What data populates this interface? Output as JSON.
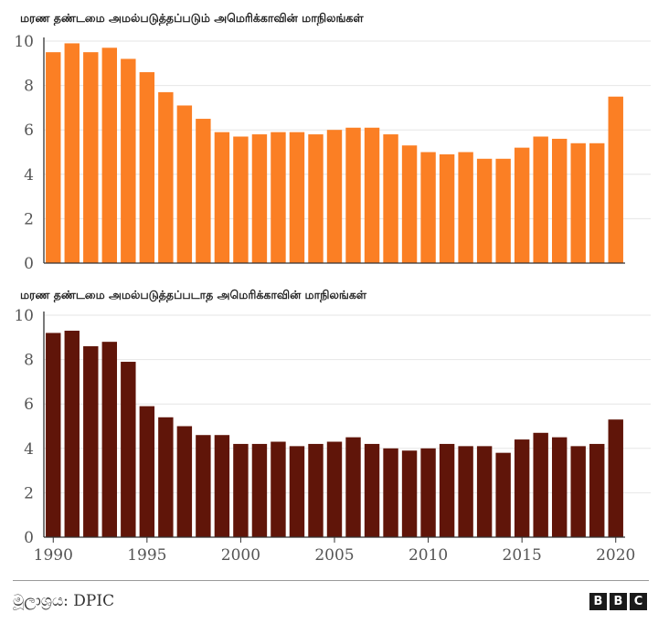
{
  "chart_data": [
    {
      "type": "bar",
      "title": "மரண தண்டமை அமல்படுத்தப்படும் அமெரிக்காவின் மாநிலங்கள்",
      "x": [
        1990,
        1991,
        1992,
        1993,
        1994,
        1995,
        1996,
        1997,
        1998,
        1999,
        2000,
        2001,
        2002,
        2003,
        2004,
        2005,
        2006,
        2007,
        2008,
        2009,
        2010,
        2011,
        2012,
        2013,
        2014,
        2015,
        2016,
        2017,
        2018,
        2019,
        2020
      ],
      "values": [
        9.5,
        9.9,
        9.5,
        9.7,
        9.2,
        8.6,
        7.7,
        7.1,
        6.5,
        5.9,
        5.7,
        5.8,
        5.9,
        5.9,
        5.8,
        6.0,
        6.1,
        6.1,
        5.8,
        5.3,
        5.0,
        4.9,
        5.0,
        4.7,
        4.7,
        5.2,
        5.7,
        5.6,
        5.4,
        5.4,
        7.5
      ],
      "ylim": [
        0,
        10
      ],
      "yticks": [
        0,
        2,
        4,
        6,
        8,
        10
      ],
      "color": "#fb7f24",
      "grid": true
    },
    {
      "type": "bar",
      "title": "மரண தண்டமை அமல்படுத்தப்படாத அமெரிக்காவின் மாநிலங்கள்",
      "x": [
        1990,
        1991,
        1992,
        1993,
        1994,
        1995,
        1996,
        1997,
        1998,
        1999,
        2000,
        2001,
        2002,
        2003,
        2004,
        2005,
        2006,
        2007,
        2008,
        2009,
        2010,
        2011,
        2012,
        2013,
        2014,
        2015,
        2016,
        2017,
        2018,
        2019,
        2020
      ],
      "values": [
        9.2,
        9.3,
        8.6,
        8.8,
        7.9,
        5.9,
        5.4,
        5.0,
        4.6,
        4.6,
        4.2,
        4.2,
        4.3,
        4.1,
        4.2,
        4.3,
        4.5,
        4.2,
        4.0,
        3.9,
        4.0,
        4.2,
        4.1,
        4.1,
        3.8,
        4.4,
        4.7,
        4.5,
        4.1,
        4.2,
        5.3
      ],
      "ylim": [
        0,
        10
      ],
      "yticks": [
        0,
        2,
        4,
        6,
        8,
        10
      ],
      "xticks": [
        1990,
        1995,
        2000,
        2005,
        2010,
        2015,
        2020
      ],
      "color": "#601509",
      "grid": true
    }
  ],
  "footer": {
    "source": "මූලාශ්‍රය: DPIC",
    "logo_letters": [
      "B",
      "B",
      "C"
    ]
  }
}
